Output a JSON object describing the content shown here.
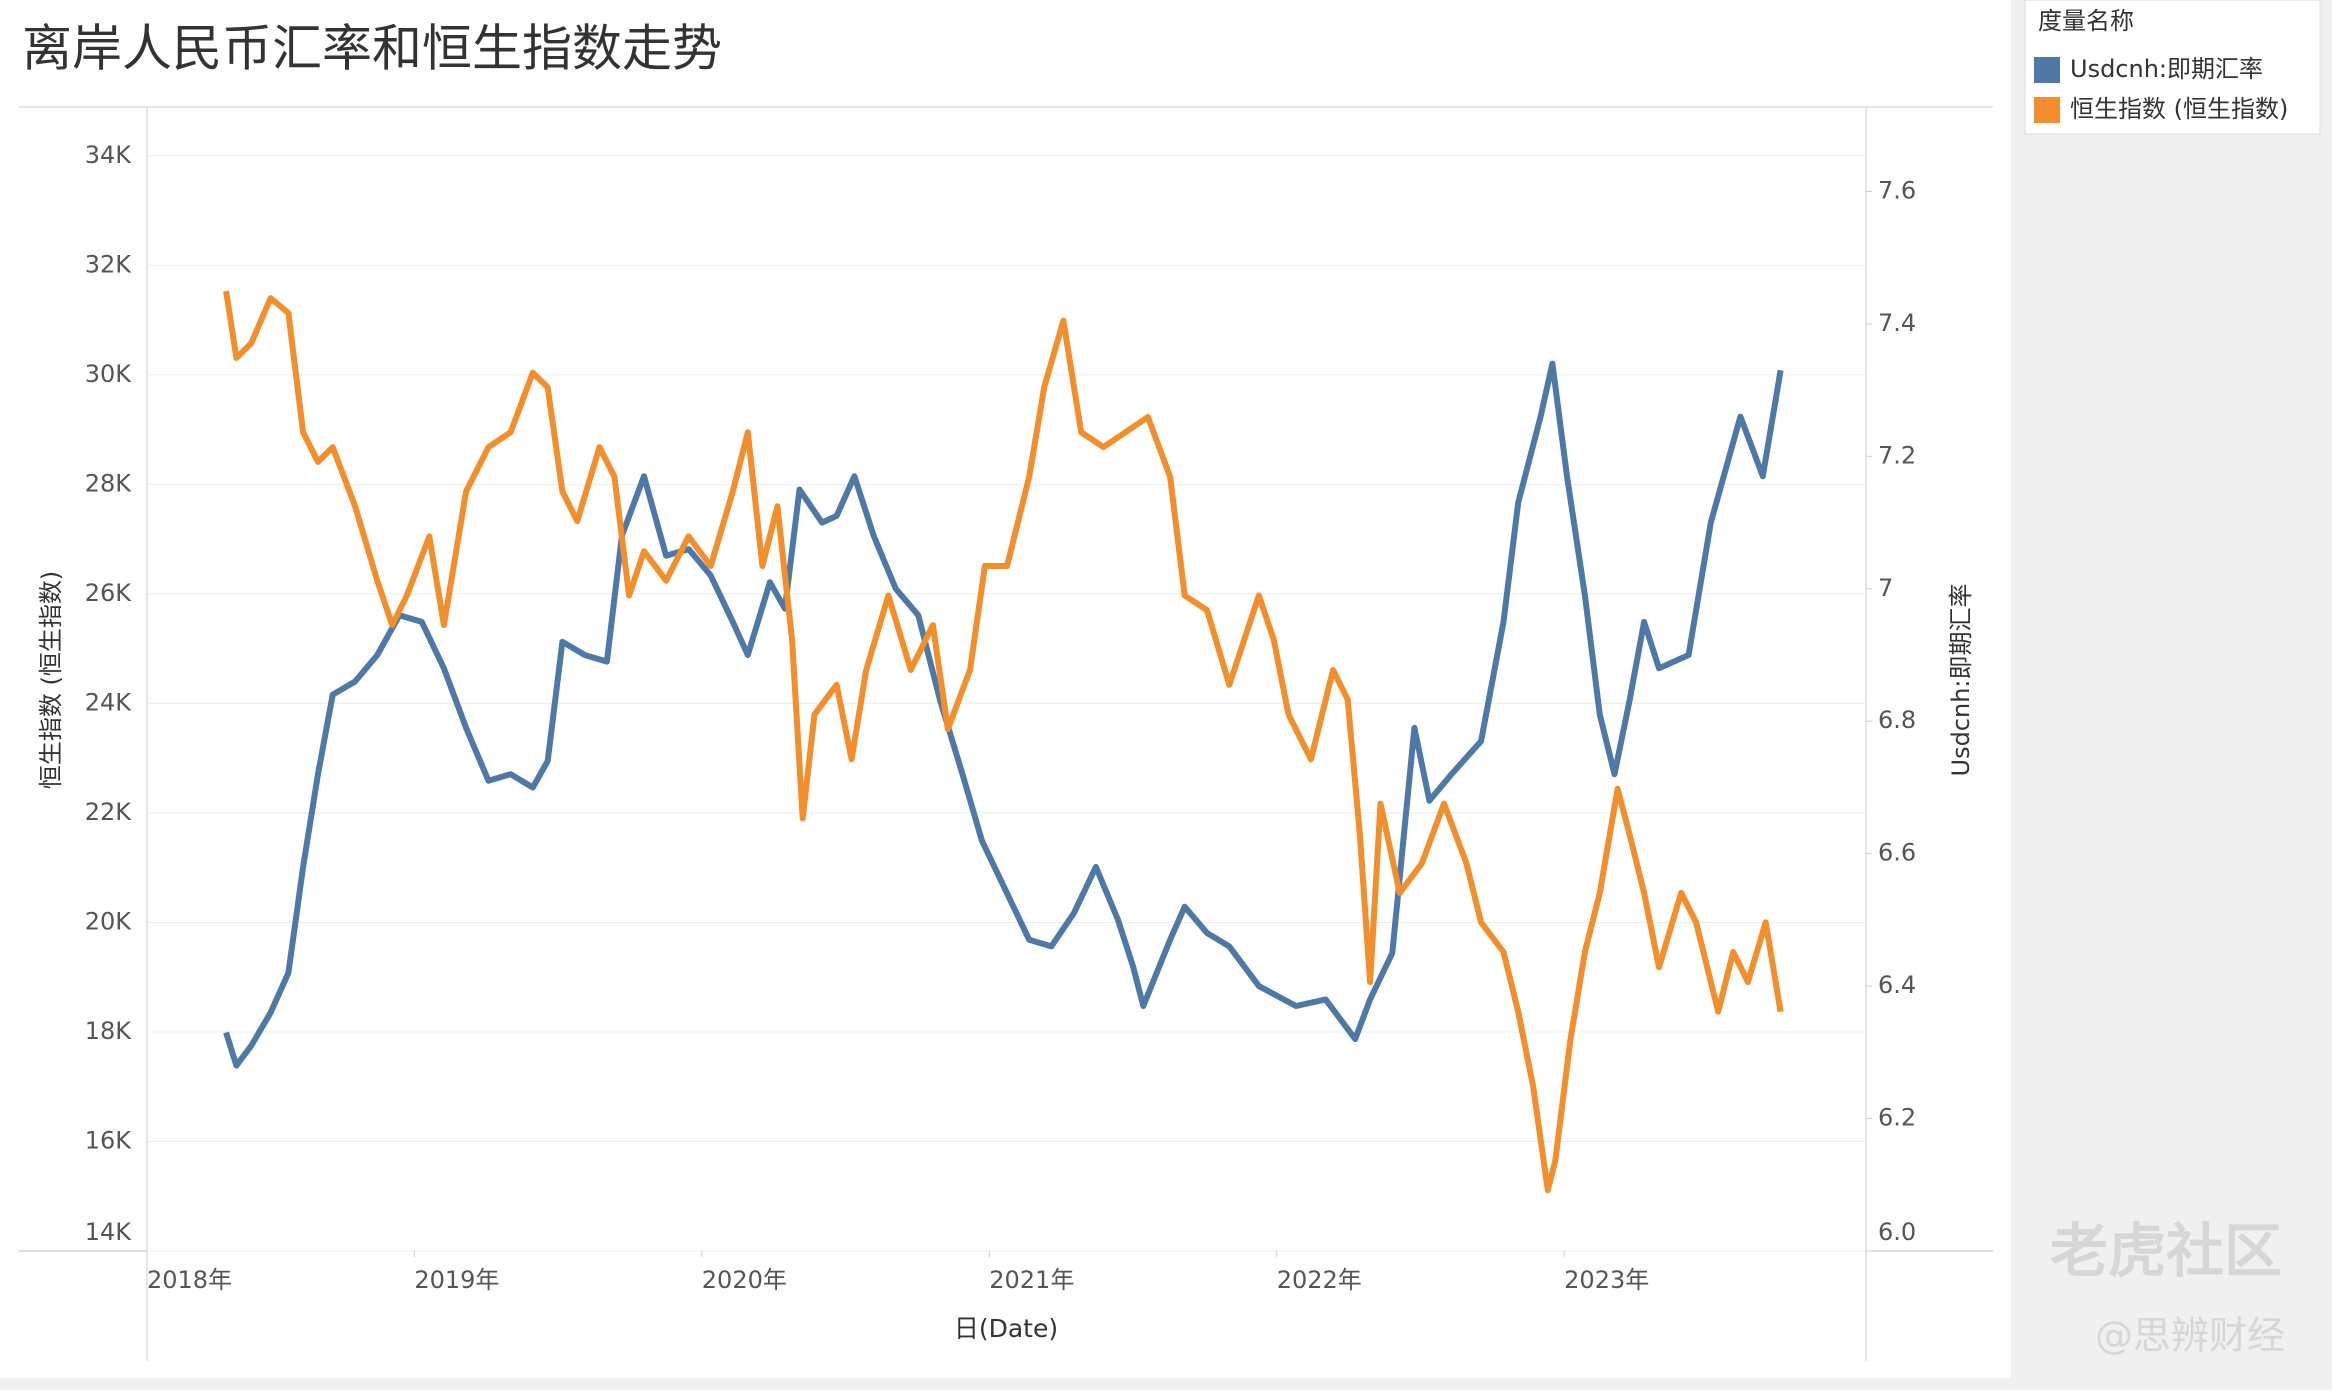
{
  "chart_data": {
    "type": "line",
    "title": "离岸人民币汇率和恒生指数走势",
    "x_label": "日(Date)",
    "y_label": "恒生指数 (恒生指数)",
    "y2_label": "Usdcnh:即期汇率",
    "legend_title": "度量名称",
    "legend": "top-right",
    "grid": true,
    "watermark": [
      "老虎社区",
      "@思辨财经"
    ],
    "xlim": [
      2018.07,
      2024.05
    ],
    "xticks": [
      {
        "value": 2018,
        "label": "2018年"
      },
      {
        "value": 2019,
        "label": "2019年"
      },
      {
        "value": 2020,
        "label": "2020年"
      },
      {
        "value": 2021,
        "label": "2021年"
      },
      {
        "value": 2022,
        "label": "2022年"
      },
      {
        "value": 2023,
        "label": "2023年"
      }
    ],
    "ylim": [
      14000,
      34800
    ],
    "yticks": [
      {
        "value": 14000,
        "label": "14K"
      },
      {
        "value": 16000,
        "label": "16K"
      },
      {
        "value": 18000,
        "label": "18K"
      },
      {
        "value": 20000,
        "label": "20K"
      },
      {
        "value": 22000,
        "label": "22K"
      },
      {
        "value": 24000,
        "label": "24K"
      },
      {
        "value": 26000,
        "label": "26K"
      },
      {
        "value": 28000,
        "label": "28K"
      },
      {
        "value": 30000,
        "label": "30K"
      },
      {
        "value": 32000,
        "label": "32K"
      },
      {
        "value": 34000,
        "label": "34K"
      }
    ],
    "y2lim": [
      6.0,
      7.72
    ],
    "y2ticks": [
      {
        "value": 6,
        "label": "6.0"
      },
      6.2,
      6.4,
      6.6,
      6.8,
      7.0,
      7.2,
      7.4,
      7.6
    ],
    "series": [
      {
        "name": "Usdcnh:即期汇率",
        "color": "#4e79a7",
        "axis": "y2",
        "x": [
          2018.345,
          2018.381,
          2018.433,
          2018.5,
          2018.562,
          2018.613,
          2018.665,
          2018.716,
          2018.794,
          2018.871,
          2018.948,
          2019.026,
          2019.103,
          2019.18,
          2019.258,
          2019.335,
          2019.412,
          2019.464,
          2019.515,
          2019.593,
          2019.67,
          2019.722,
          2019.799,
          2019.876,
          2019.954,
          2020.031,
          2020.108,
          2020.16,
          2020.237,
          2020.289,
          2020.34,
          2020.418,
          2020.469,
          2020.531,
          2020.598,
          2020.675,
          2020.753,
          2020.83,
          2020.907,
          2020.974,
          2021.062,
          2021.139,
          2021.216,
          2021.294,
          2021.371,
          2021.448,
          2021.5,
          2021.536,
          2021.629,
          2021.68,
          2021.758,
          2021.835,
          2021.938,
          2022.067,
          2022.17,
          2022.273,
          2022.325,
          2022.402,
          2022.479,
          2022.531,
          2022.608,
          2022.711,
          2022.789,
          2022.84,
          2022.918,
          2022.959,
          2023.01,
          2023.072,
          2023.124,
          2023.175,
          2023.227,
          2023.278,
          2023.33,
          2023.433,
          2023.51,
          2023.613,
          2023.691,
          2023.753
        ],
        "values": [
          6.33,
          6.28,
          6.31,
          6.36,
          6.42,
          6.58,
          6.72,
          6.84,
          6.86,
          6.9,
          6.96,
          6.95,
          6.88,
          6.79,
          6.71,
          6.72,
          6.7,
          6.74,
          6.92,
          6.9,
          6.89,
          7.08,
          7.17,
          7.05,
          7.06,
          7.02,
          6.95,
          6.9,
          7.01,
          6.97,
          7.15,
          7.1,
          7.11,
          7.17,
          7.08,
          7.0,
          6.96,
          6.83,
          6.72,
          6.62,
          6.54,
          6.47,
          6.46,
          6.51,
          6.58,
          6.5,
          6.43,
          6.37,
          6.47,
          6.52,
          6.48,
          6.46,
          6.4,
          6.37,
          6.38,
          6.32,
          6.38,
          6.45,
          6.79,
          6.68,
          6.72,
          6.77,
          6.95,
          7.13,
          7.26,
          7.34,
          7.17,
          6.99,
          6.81,
          6.72,
          6.83,
          6.95,
          6.88,
          6.9,
          7.1,
          7.26,
          7.17,
          7.33
        ]
      },
      {
        "name": "恒生指数 (恒生指数)",
        "color": "#f28e2b",
        "axis": "y",
        "x": [
          2018.345,
          2018.381,
          2018.433,
          2018.5,
          2018.562,
          2018.613,
          2018.665,
          2018.716,
          2018.794,
          2018.871,
          2018.923,
          2018.974,
          2019.052,
          2019.103,
          2019.18,
          2019.258,
          2019.335,
          2019.412,
          2019.464,
          2019.515,
          2019.567,
          2019.644,
          2019.696,
          2019.747,
          2019.799,
          2019.876,
          2019.954,
          2020.031,
          2020.108,
          2020.16,
          2020.211,
          2020.263,
          2020.314,
          2020.351,
          2020.392,
          2020.469,
          2020.521,
          2020.572,
          2020.649,
          2020.727,
          2020.804,
          2020.856,
          2020.933,
          2020.985,
          2021.062,
          2021.139,
          2021.191,
          2021.258,
          2021.32,
          2021.397,
          2021.474,
          2021.552,
          2021.629,
          2021.68,
          2021.758,
          2021.835,
          2021.938,
          2021.99,
          2022.041,
          2022.119,
          2022.196,
          2022.247,
          2022.289,
          2022.325,
          2022.361,
          2022.428,
          2022.505,
          2022.582,
          2022.66,
          2022.711,
          2022.789,
          2022.84,
          2022.892,
          2022.943,
          2022.969,
          2023.021,
          2023.072,
          2023.124,
          2023.186,
          2023.227,
          2023.278,
          2023.33,
          2023.407,
          2023.459,
          2023.536,
          2023.588,
          2023.639,
          2023.701,
          2023.753
        ],
        "values": [
          31530,
          30310,
          30580,
          31400,
          31130,
          28950,
          28410,
          28680,
          27600,
          26240,
          25430,
          25970,
          27050,
          25430,
          27870,
          28680,
          28950,
          30040,
          29770,
          27870,
          27330,
          28680,
          28140,
          25970,
          26780,
          26240,
          27050,
          26510,
          27870,
          28950,
          26510,
          27600,
          25160,
          21900,
          23800,
          24340,
          22980,
          24610,
          25970,
          24610,
          25430,
          23530,
          24610,
          26510,
          26510,
          28140,
          29770,
          30990,
          28950,
          28680,
          28950,
          29230,
          28140,
          25970,
          25700,
          24340,
          25970,
          25160,
          23800,
          22980,
          24610,
          24070,
          21620,
          18910,
          22170,
          20540,
          21080,
          22170,
          21080,
          20000,
          19460,
          18370,
          17010,
          15110,
          15650,
          17830,
          19460,
          20540,
          22440,
          21620,
          20540,
          19180,
          20540,
          20000,
          18370,
          19460,
          18910,
          20000,
          18370
        ]
      }
    ]
  }
}
